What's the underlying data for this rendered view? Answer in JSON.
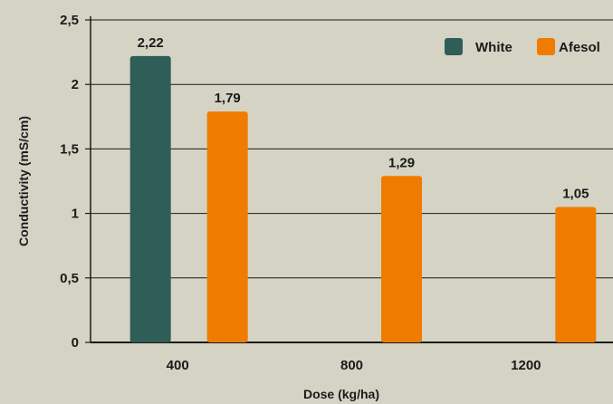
{
  "chart_data": {
    "type": "bar",
    "categories": [
      "400",
      "800",
      "1200"
    ],
    "series": [
      {
        "name": "White",
        "values": [
          2.22,
          null,
          null
        ],
        "labels": [
          "2,22",
          "",
          ""
        ],
        "color": "#2f5d57"
      },
      {
        "name": "Afesol",
        "values": [
          1.79,
          1.29,
          1.05
        ],
        "labels": [
          "1,79",
          "1,29",
          "1,05"
        ],
        "color": "#ef7c00"
      }
    ],
    "xlabel": "Dose (kg/ha)",
    "ylabel": "Conductivity (mS/cm)",
    "ylim": [
      0,
      2.5
    ],
    "yticks": [
      0,
      0.5,
      1,
      1.5,
      2,
      2.5
    ],
    "ytick_labels": [
      "0",
      "0,5",
      "1",
      "1,5",
      "2",
      "2,5"
    ],
    "grid": true,
    "legend_position": "top-right",
    "background": "#d5d3c4"
  }
}
